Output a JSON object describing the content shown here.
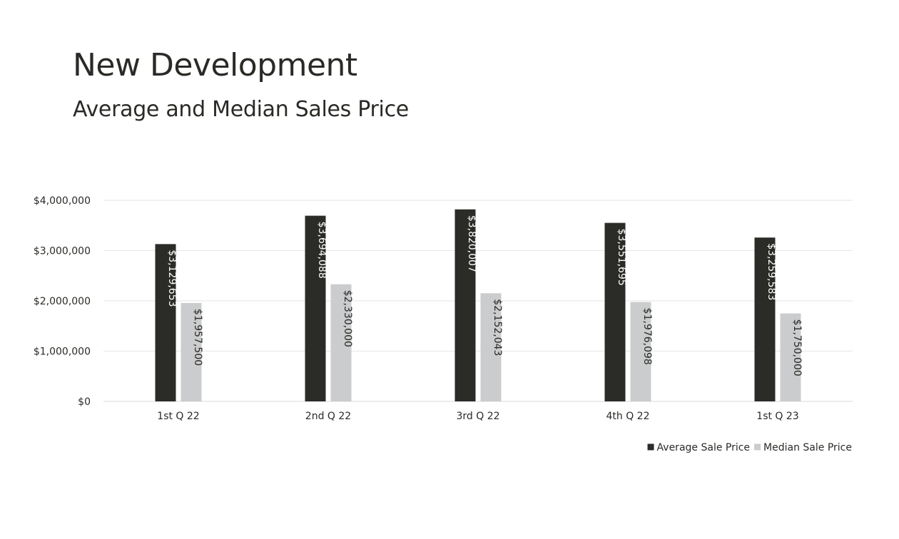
{
  "chart_data": {
    "type": "bar",
    "title": "New Development",
    "subtitle": "Average and Median Sales Price",
    "categories": [
      "1st Q 22",
      "2nd Q 22",
      "3rd Q 22",
      "4th Q 22",
      "1st Q 23"
    ],
    "series": [
      {
        "name": "Average Sale Price",
        "color": "#2b2b27",
        "values": [
          3129653,
          3694088,
          3820007,
          3551695,
          3259583
        ],
        "labels": [
          "$3,129,653",
          "$3,694,088",
          "$3,820,007",
          "$3,551,695",
          "$3,259,583"
        ]
      },
      {
        "name": "Median Sale Price",
        "color": "#cbcccd",
        "values": [
          1957500,
          2330000,
          2152043,
          1976098,
          1750000
        ],
        "labels": [
          "$1,957,500",
          "$2,330,000",
          "$2,152,043",
          "$1,976,098",
          "$1,750,000"
        ]
      }
    ],
    "ylim": [
      0,
      4000000
    ],
    "yticks": [
      0,
      1000000,
      2000000,
      3000000,
      4000000
    ],
    "ytick_labels": [
      "$0",
      "$1,000,000",
      "$2,000,000",
      "$3,000,000",
      "$4,000,000"
    ],
    "grid": true,
    "legend_position": "bottom-right"
  }
}
